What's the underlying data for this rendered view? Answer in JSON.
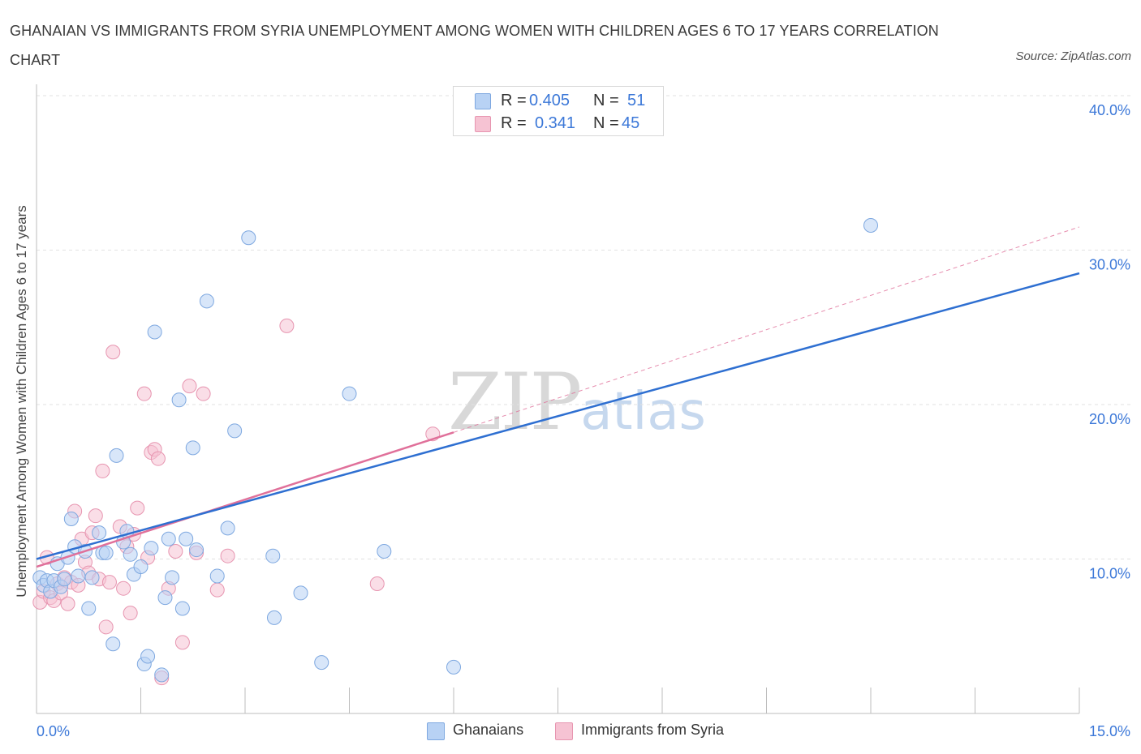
{
  "header": {
    "title": "GHANAIAN VS IMMIGRANTS FROM SYRIA UNEMPLOYMENT AMONG WOMEN WITH CHILDREN AGES 6 TO 17 YEARS CORRELATION CHART",
    "source": "Source: ZipAtlas.com"
  },
  "watermark": {
    "zip": "ZIP",
    "atlas": "atlas"
  },
  "colors": {
    "ghanaian_fill": "#b8d2f4",
    "ghanaian_stroke": "#7ea8e0",
    "ghanaian_line": "#2e6fd1",
    "syria_fill": "#f6c3d3",
    "syria_stroke": "#e795b0",
    "syria_line": "#e0709a",
    "tick_label": "#3c78d8",
    "grid": "#e2e2e2"
  },
  "legend": {
    "rows": [
      {
        "r_label": "R =",
        "r_value": "0.405",
        "n_label": "N =",
        "n_value": "51"
      },
      {
        "r_label": "R =",
        "r_value": "0.341",
        "n_label": "N =",
        "n_value": "45"
      }
    ]
  },
  "chart_data": {
    "type": "scatter",
    "title": "GHANAIAN VS IMMIGRANTS FROM SYRIA UNEMPLOYMENT AMONG WOMEN WITH CHILDREN AGES 6 TO 17 YEARS CORRELATION CHART",
    "xlabel": "",
    "ylabel": "Unemployment Among Women with Children Ages 6 to 17 years",
    "xlim": [
      0,
      15
    ],
    "ylim": [
      0,
      40
    ],
    "x_ticks": [
      0,
      1.5,
      3,
      4.5,
      6,
      7.5,
      9,
      10.5,
      12,
      13.5,
      15
    ],
    "x_tick_labels": [
      {
        "value": 0,
        "label": "0.0%"
      },
      {
        "value": 15,
        "label": "15.0%"
      }
    ],
    "y_ticks": [
      {
        "value": 10,
        "label": "10.0%"
      },
      {
        "value": 20,
        "label": "20.0%"
      },
      {
        "value": 30,
        "label": "30.0%"
      },
      {
        "value": 40,
        "label": "40.0%"
      }
    ],
    "grid": true,
    "legend_position": "top-center",
    "series": [
      {
        "name": "Ghanaians",
        "R": 0.405,
        "N": 51,
        "trend": {
          "x": [
            0,
            15
          ],
          "y": [
            10.0,
            28.5
          ],
          "style": "solid"
        },
        "points": [
          [
            0.05,
            8.8
          ],
          [
            0.1,
            8.3
          ],
          [
            0.15,
            8.6
          ],
          [
            0.2,
            7.9
          ],
          [
            0.25,
            8.6
          ],
          [
            0.3,
            9.7
          ],
          [
            0.35,
            8.2
          ],
          [
            0.4,
            8.7
          ],
          [
            0.45,
            10.1
          ],
          [
            0.5,
            12.6
          ],
          [
            0.55,
            10.8
          ],
          [
            0.6,
            8.9
          ],
          [
            0.7,
            10.5
          ],
          [
            0.75,
            6.8
          ],
          [
            0.8,
            8.8
          ],
          [
            0.9,
            11.7
          ],
          [
            0.95,
            10.4
          ],
          [
            1.0,
            10.4
          ],
          [
            1.1,
            4.5
          ],
          [
            1.15,
            16.7
          ],
          [
            1.25,
            11.1
          ],
          [
            1.3,
            11.8
          ],
          [
            1.35,
            10.3
          ],
          [
            1.4,
            9.0
          ],
          [
            1.5,
            9.5
          ],
          [
            1.55,
            3.2
          ],
          [
            1.6,
            3.7
          ],
          [
            1.65,
            10.7
          ],
          [
            1.7,
            24.7
          ],
          [
            1.8,
            2.5
          ],
          [
            1.85,
            7.5
          ],
          [
            1.9,
            11.3
          ],
          [
            1.95,
            8.8
          ],
          [
            2.05,
            20.3
          ],
          [
            2.1,
            6.8
          ],
          [
            2.15,
            11.3
          ],
          [
            2.25,
            17.2
          ],
          [
            2.3,
            10.6
          ],
          [
            2.45,
            26.7
          ],
          [
            2.6,
            8.9
          ],
          [
            2.75,
            12.0
          ],
          [
            2.85,
            18.3
          ],
          [
            3.05,
            30.8
          ],
          [
            3.4,
            10.2
          ],
          [
            3.42,
            6.2
          ],
          [
            3.8,
            7.8
          ],
          [
            4.1,
            3.3
          ],
          [
            4.5,
            20.7
          ],
          [
            5.0,
            10.5
          ],
          [
            6.0,
            3.0
          ],
          [
            12.0,
            31.6
          ]
        ]
      },
      {
        "name": "Immigrants from Syria",
        "R": 0.341,
        "N": 45,
        "trend": {
          "x": [
            0,
            6.0,
            15
          ],
          "y": [
            9.5,
            18.2,
            31.5
          ],
          "solid_until_x": 6.0
        },
        "points": [
          [
            0.05,
            7.2
          ],
          [
            0.1,
            7.9
          ],
          [
            0.15,
            10.1
          ],
          [
            0.2,
            7.5
          ],
          [
            0.25,
            7.3
          ],
          [
            0.3,
            8.4
          ],
          [
            0.35,
            7.8
          ],
          [
            0.4,
            8.8
          ],
          [
            0.45,
            7.1
          ],
          [
            0.5,
            8.5
          ],
          [
            0.55,
            13.1
          ],
          [
            0.6,
            8.3
          ],
          [
            0.65,
            11.3
          ],
          [
            0.7,
            9.8
          ],
          [
            0.75,
            9.1
          ],
          [
            0.8,
            11.7
          ],
          [
            0.85,
            12.8
          ],
          [
            0.9,
            8.7
          ],
          [
            0.95,
            15.7
          ],
          [
            1.0,
            5.6
          ],
          [
            1.05,
            8.5
          ],
          [
            1.1,
            23.4
          ],
          [
            1.2,
            12.1
          ],
          [
            1.25,
            8.1
          ],
          [
            1.3,
            10.8
          ],
          [
            1.35,
            6.5
          ],
          [
            1.4,
            11.6
          ],
          [
            1.45,
            13.3
          ],
          [
            1.55,
            20.7
          ],
          [
            1.6,
            10.1
          ],
          [
            1.65,
            16.9
          ],
          [
            1.7,
            17.1
          ],
          [
            1.75,
            16.5
          ],
          [
            1.8,
            2.3
          ],
          [
            1.9,
            8.1
          ],
          [
            2.0,
            10.5
          ],
          [
            2.1,
            4.6
          ],
          [
            2.2,
            21.2
          ],
          [
            2.3,
            10.4
          ],
          [
            2.4,
            20.7
          ],
          [
            2.6,
            8.0
          ],
          [
            2.75,
            10.2
          ],
          [
            3.6,
            25.1
          ],
          [
            4.9,
            8.4
          ],
          [
            5.7,
            18.1
          ]
        ]
      }
    ]
  },
  "bottom_legend": {
    "items": [
      {
        "label": "Ghanaians"
      },
      {
        "label": "Immigrants from Syria"
      }
    ]
  }
}
